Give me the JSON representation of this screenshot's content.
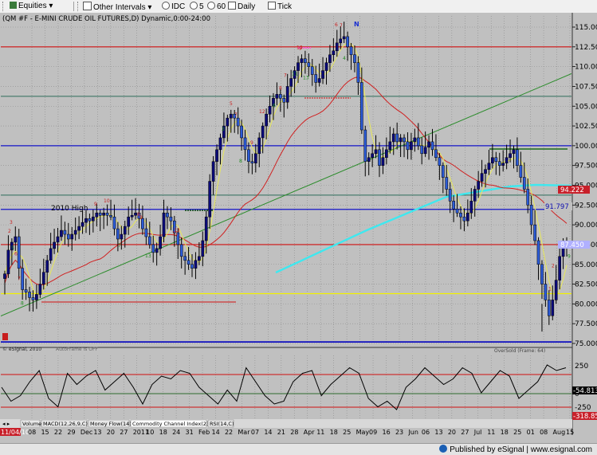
{
  "toolbar": {
    "items": [
      "Equities",
      "Other Intervals",
      "IDC",
      "5",
      "60",
      "Daily",
      "Tick"
    ]
  },
  "chart": {
    "title": "(QM #F - E-MINI CRUDE OIL FUTURES,D) Dynamic,0:00-24:00",
    "wave_label": "N",
    "label_2010_high": "2010 High",
    "copyright": "© eSignal, 2010",
    "autoframe": "AutoFrame is OFF",
    "oversold": "OverSold (Frame: 64)",
    "start_date": "11/04/10",
    "price_tags": [
      "94.222",
      "91.797",
      "87.450"
    ],
    "indicator_tags": [
      "-54.813",
      "-318.853"
    ],
    "indicator_ticks": [
      "250",
      "0",
      "-250"
    ],
    "indicator_tabs": [
      "Volume",
      "MACD(12,26,9,C)",
      "Money Flow(14)",
      "Commodity Channel Index(23,C)",
      "RSI(14,C)"
    ]
  },
  "chart_data": {
    "type": "candlestick",
    "y_ticks": [
      "115.000",
      "112.500",
      "110.000",
      "107.500",
      "105.000",
      "102.500",
      "100.000",
      "97.500",
      "95.000",
      "92.500",
      "90.000",
      "87.500",
      "85.000",
      "82.500",
      "80.000",
      "77.500",
      "75.000"
    ],
    "x_ticks": [
      "08",
      "15",
      "22",
      "29",
      "Dec",
      "13",
      "20",
      "27",
      "2011",
      "10",
      "18",
      "24",
      "31",
      "Feb",
      "14",
      "22",
      "Mar",
      "07",
      "14",
      "21",
      "28",
      "Apr",
      "11",
      "18",
      "25",
      "May",
      "09",
      "16",
      "23",
      "Jun",
      "06",
      "13",
      "20",
      "27",
      "Jul",
      "11",
      "18",
      "25",
      "01",
      "08",
      "Aug",
      "15"
    ],
    "ylim": [
      73.8,
      116.8
    ],
    "close": [
      83.8,
      86.8,
      87.8,
      88.5,
      84.5,
      81.8,
      81.5,
      80.8,
      80.5,
      81.2,
      82.5,
      84.0,
      85.5,
      87.0,
      87.8,
      88.5,
      89.3,
      88.8,
      88.2,
      88.8,
      89.3,
      89.8,
      90.3,
      90.8,
      90.5,
      91.0,
      91.5,
      91.2,
      91.5,
      91.2,
      91.0,
      89.5,
      88.2,
      88.8,
      89.8,
      91.0,
      91.2,
      91.5,
      90.8,
      89.5,
      88.5,
      87.5,
      86.5,
      87.0,
      88.5,
      91.5,
      91.0,
      90.5,
      89.0,
      87.5,
      86.0,
      85.5,
      85.0,
      84.5,
      85.5,
      86.0,
      88.0,
      91.0,
      95.5,
      98.0,
      99.5,
      101.0,
      102.5,
      103.5,
      104.0,
      103.5,
      102.5,
      101.0,
      99.5,
      98.0,
      97.8,
      99.0,
      101.0,
      102.5,
      104.0,
      105.0,
      106.0,
      106.5,
      106.0,
      105.5,
      107.5,
      108.5,
      109.5,
      110.5,
      111.0,
      110.5,
      110.0,
      109.0,
      108.0,
      108.5,
      109.5,
      110.5,
      111.5,
      112.0,
      113.0,
      113.5,
      113.8,
      112.5,
      111.5,
      110.5,
      108.0,
      102.0,
      98.0,
      98.5,
      99.0,
      99.5,
      97.5,
      98.5,
      99.5,
      100.5,
      101.5,
      100.5,
      101.0,
      100.5,
      99.5,
      100.5,
      101.0,
      100.0,
      99.0,
      99.8,
      100.5,
      99.5,
      98.5,
      97.5,
      96.0,
      94.5,
      93.0,
      92.0,
      91.5,
      91.0,
      90.5,
      91.5,
      93.0,
      94.5,
      95.5,
      96.5,
      97.0,
      97.8,
      98.5,
      98.0,
      97.5,
      97.8,
      98.5,
      99.0,
      99.5,
      97.5,
      96.0,
      94.5,
      92.5,
      90.0,
      88.0,
      85.0,
      82.5,
      80.5,
      78.5,
      80.5,
      83.0,
      86.0,
      87.5,
      87.45
    ],
    "stoch_curve": [
      0.5,
      0.25,
      0.35,
      0.6,
      0.8,
      0.3,
      0.15,
      0.75,
      0.55,
      0.7,
      0.8,
      0.45,
      0.6,
      0.75,
      0.5,
      0.2,
      0.55,
      0.7,
      0.65,
      0.8,
      0.75,
      0.5,
      0.35,
      0.2,
      0.45,
      0.25,
      0.85,
      0.6,
      0.35,
      0.2,
      0.25,
      0.6,
      0.75,
      0.8,
      0.35,
      0.55,
      0.7,
      0.85,
      0.75,
      0.3,
      0.15,
      0.25,
      0.1,
      0.5,
      0.65,
      0.85,
      0.7,
      0.55,
      0.65,
      0.85,
      0.75,
      0.4,
      0.6,
      0.8,
      0.7,
      0.3,
      0.45,
      0.6,
      0.9,
      0.8,
      0.85
    ],
    "lines": {
      "red": [
        112.5,
        87.5
      ],
      "dark_green": [
        106.25,
        93.75
      ],
      "blue": [
        100.0,
        91.95
      ],
      "yellow": 81.3,
      "bottom_blue": 75.15
    },
    "grid": true
  }
}
